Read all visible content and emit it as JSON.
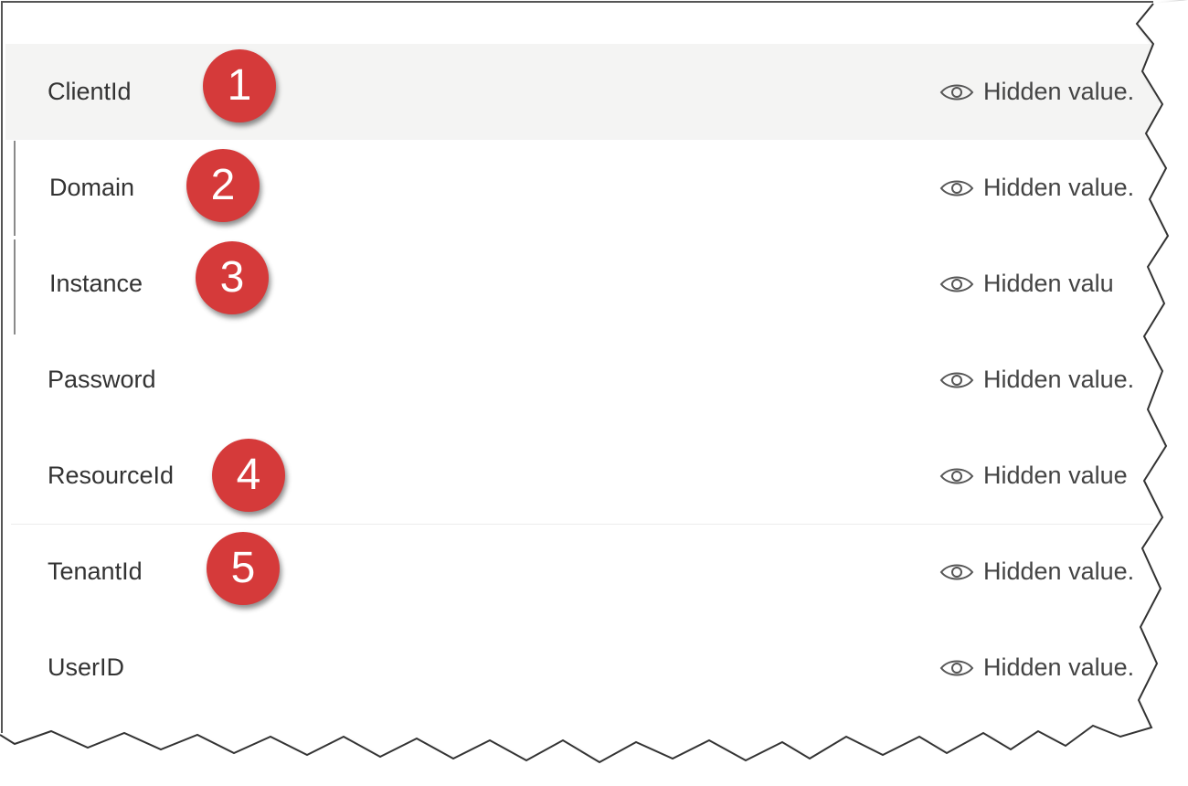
{
  "rows": [
    {
      "name": "ClientId",
      "value": "Hidden value.",
      "badge": "1"
    },
    {
      "name": "Domain",
      "value": "Hidden value.",
      "badge": "2"
    },
    {
      "name": "Instance",
      "value": "Hidden valu",
      "badge": "3"
    },
    {
      "name": "Password",
      "value": "Hidden value.",
      "badge": ""
    },
    {
      "name": "ResourceId",
      "value": "Hidden value",
      "badge": "4"
    },
    {
      "name": "TenantId",
      "value": "Hidden value.",
      "badge": "5"
    },
    {
      "name": "UserID",
      "value": "Hidden value.",
      "badge": ""
    }
  ],
  "icons": {
    "value_icon": "eye-icon"
  },
  "colors": {
    "badge": "#d53a3a",
    "selected_row": "#f4f4f3",
    "text": "#333333"
  }
}
